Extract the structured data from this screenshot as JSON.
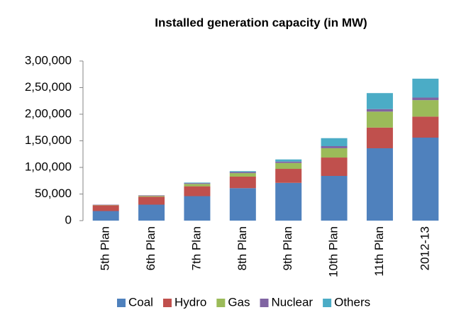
{
  "chart_data": {
    "type": "stacked_bar",
    "title": "Installed generation capacity (in MW)",
    "categories": [
      "5th Plan",
      "6th Plan",
      "7th Plan",
      "8th Plan",
      "9th Plan",
      "10th Plan",
      "11th Plan",
      "2012-13"
    ],
    "series": [
      {
        "name": "Coal",
        "color": "#4f81bd",
        "values": [
          18000,
          30000,
          46000,
          61000,
          71000,
          84000,
          136000,
          156000
        ]
      },
      {
        "name": "Hydro",
        "color": "#c0504d",
        "values": [
          10800,
          15000,
          18500,
          21700,
          26300,
          34600,
          38900,
          39500
        ]
      },
      {
        "name": "Gas",
        "color": "#9bbb59",
        "values": [
          500,
          1500,
          4500,
          6500,
          11000,
          17500,
          30000,
          31000
        ]
      },
      {
        "name": "Nuclear",
        "color": "#8064a2",
        "values": [
          600,
          1000,
          1500,
          2200,
          2700,
          3900,
          4800,
          4800
        ]
      },
      {
        "name": "Others",
        "color": "#4bacc6",
        "values": [
          0,
          0,
          1000,
          1600,
          4000,
          15000,
          30000,
          35500
        ]
      }
    ],
    "ylim": [
      0,
      300000
    ],
    "yticks": [
      0,
      {
        "value": 50000,
        "label": "50,000"
      },
      {
        "value": 100000,
        "label": "1,00,000"
      },
      {
        "value": 150000,
        "label": "1,50,000"
      },
      {
        "value": 200000,
        "label": "2,00,000"
      },
      {
        "value": 250000,
        "label": "2,50,000"
      },
      {
        "value": 300000,
        "label": "3,00,000"
      }
    ],
    "grid": false,
    "legend": "bottom"
  }
}
